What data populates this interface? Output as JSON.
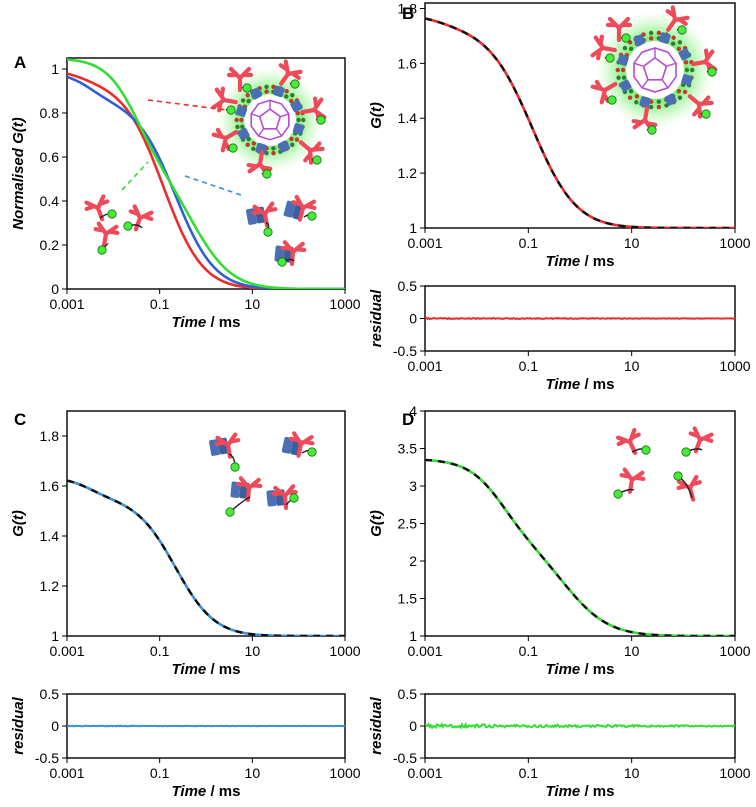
{
  "figure_labels": {
    "time_em": "Time",
    "time_unit": " / ms"
  },
  "colors": {
    "red": "#ee2b2b",
    "blue": "#2f5fd6",
    "green": "#33dd33",
    "cyan": "#3a8fd8",
    "antibody": "#ee4a5a",
    "protein": "#4a6fb5",
    "dye": "#44ee33"
  },
  "chart_data": [
    {
      "id": "A",
      "panel_label": "A",
      "type": "line",
      "title": "",
      "xlabel": "Time / ms",
      "ylabel": "Normalised G(t)",
      "ylabel_prefix": "Normalised ",
      "ylabel_em": "G(t)",
      "xscale": "log",
      "xlim": [
        0.001,
        1000
      ],
      "ylim": [
        0,
        1.05
      ],
      "xticks": [
        "0.001",
        "0.1",
        "10",
        "1000"
      ],
      "yticks": [
        "0",
        "0.2",
        "0.4",
        "0.6",
        "0.8",
        "1"
      ],
      "series": [
        {
          "name": "antibody-coated nanoparticle",
          "color": "#ee2b2b",
          "model": {
            "a0": 0.05,
            "k": 1.5,
            "ta": 0.002,
            "tb": 0.12,
            "y0": 1.0
          }
        },
        {
          "name": "protein-bound antibody",
          "color": "#2f5fd6",
          "model": {
            "a0": 0.12,
            "k": 1.6,
            "ta": 0.003,
            "tb": 0.22,
            "y0": 0.985
          }
        },
        {
          "name": "free antibody",
          "color": "#33dd33",
          "model": {
            "a0": 0.45,
            "k": 1.3,
            "ta": 0.03,
            "tb": 0.55,
            "y0": 1.05
          }
        }
      ]
    },
    {
      "id": "B",
      "panel_label": "B",
      "type": "line",
      "xlabel": "Time / ms",
      "ylabel": "G(t)",
      "xscale": "log",
      "xlim": [
        0.001,
        1000
      ],
      "ylim": [
        1,
        1.82
      ],
      "xticks": [
        "0.001",
        "0.1",
        "10",
        "1000"
      ],
      "yticks": [
        "1",
        "1.2",
        "1.4",
        "1.6",
        "1.8"
      ],
      "series": [
        {
          "name": "data",
          "color": "#ee2b2b",
          "dashed_overlay": "#111111",
          "model": {
            "a0": 0.05,
            "k": 1.5,
            "ta": 0.002,
            "tb": 0.12,
            "y0": 1.0,
            "G0": 0.78
          }
        }
      ],
      "residual": {
        "ylabel": "residual",
        "ylim": [
          -0.5,
          0.5
        ],
        "yticks": [
          "-0.5",
          "0",
          "0.5"
        ],
        "color": "#ee2b2b",
        "noise": 0.008
      }
    },
    {
      "id": "C",
      "panel_label": "C",
      "type": "line",
      "xlabel": "Time / ms",
      "ylabel": "G(t)",
      "xscale": "log",
      "xlim": [
        0.001,
        1000
      ],
      "ylim": [
        1,
        1.9
      ],
      "xticks": [
        "0.001",
        "0.1",
        "10",
        "1000"
      ],
      "yticks": [
        "1",
        "1.2",
        "1.4",
        "1.6",
        "1.8"
      ],
      "series": [
        {
          "name": "data",
          "color": "#3a8fd8",
          "dashed_overlay": "#111111",
          "model": {
            "a0": 0.12,
            "k": 1.6,
            "ta": 0.003,
            "tb": 0.22,
            "y0": 0.985,
            "G0": 0.645
          }
        }
      ],
      "residual": {
        "ylabel": "residual",
        "ylim": [
          -0.5,
          0.5
        ],
        "yticks": [
          "-0.5",
          "0",
          "0.5"
        ],
        "color": "#3a8fd8",
        "noise": 0.005
      }
    },
    {
      "id": "D",
      "panel_label": "D",
      "type": "line",
      "xlabel": "Time / ms",
      "ylabel": "G(t)",
      "xscale": "log",
      "xlim": [
        0.001,
        1000
      ],
      "ylim": [
        1,
        4
      ],
      "xticks": [
        "0.001",
        "0.1",
        "10",
        "1000"
      ],
      "yticks": [
        "1",
        "1.5",
        "2",
        "2.5",
        "3",
        "3.5",
        "4"
      ],
      "series": [
        {
          "name": "data",
          "color": "#33dd33",
          "dashed_overlay": "#111111",
          "model": {
            "a0": 0.45,
            "k": 1.3,
            "ta": 0.03,
            "tb": 0.55,
            "y0": 1.05,
            "G0": 2.25
          }
        }
      ],
      "residual": {
        "ylabel": "residual",
        "ylim": [
          -0.5,
          0.5
        ],
        "yticks": [
          "-0.5",
          "0",
          "0.5"
        ],
        "color": "#33dd33",
        "noise": 0.025
      }
    }
  ]
}
